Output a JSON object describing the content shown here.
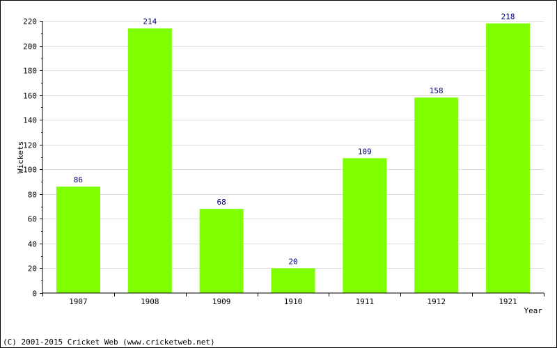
{
  "chart_data": {
    "type": "bar",
    "categories": [
      "1907",
      "1908",
      "1909",
      "1910",
      "1911",
      "1912",
      "1921"
    ],
    "series": [
      {
        "values": [
          86,
          214,
          68,
          20,
          109,
          158,
          218
        ]
      }
    ],
    "data_labels": [
      "86",
      "214",
      "68",
      "20",
      "109",
      "158",
      "218"
    ],
    "title": "",
    "xlabel": "Year",
    "ylabel": "Wickets",
    "ylim": [
      0,
      220
    ],
    "yticks": [
      0,
      20,
      40,
      60,
      80,
      100,
      120,
      140,
      160,
      180,
      200,
      220
    ],
    "ytick_labels": [
      "0",
      "20",
      "40",
      "60",
      "80",
      "100",
      "120",
      "140",
      "160",
      "180",
      "200",
      "220"
    ],
    "grid": true,
    "bar_color": "#7fff00",
    "grid_color": "#dddddd",
    "label_color": "#000080"
  },
  "footer": {
    "text": "(C) 2001-2015 Cricket Web (www.cricketweb.net)"
  }
}
